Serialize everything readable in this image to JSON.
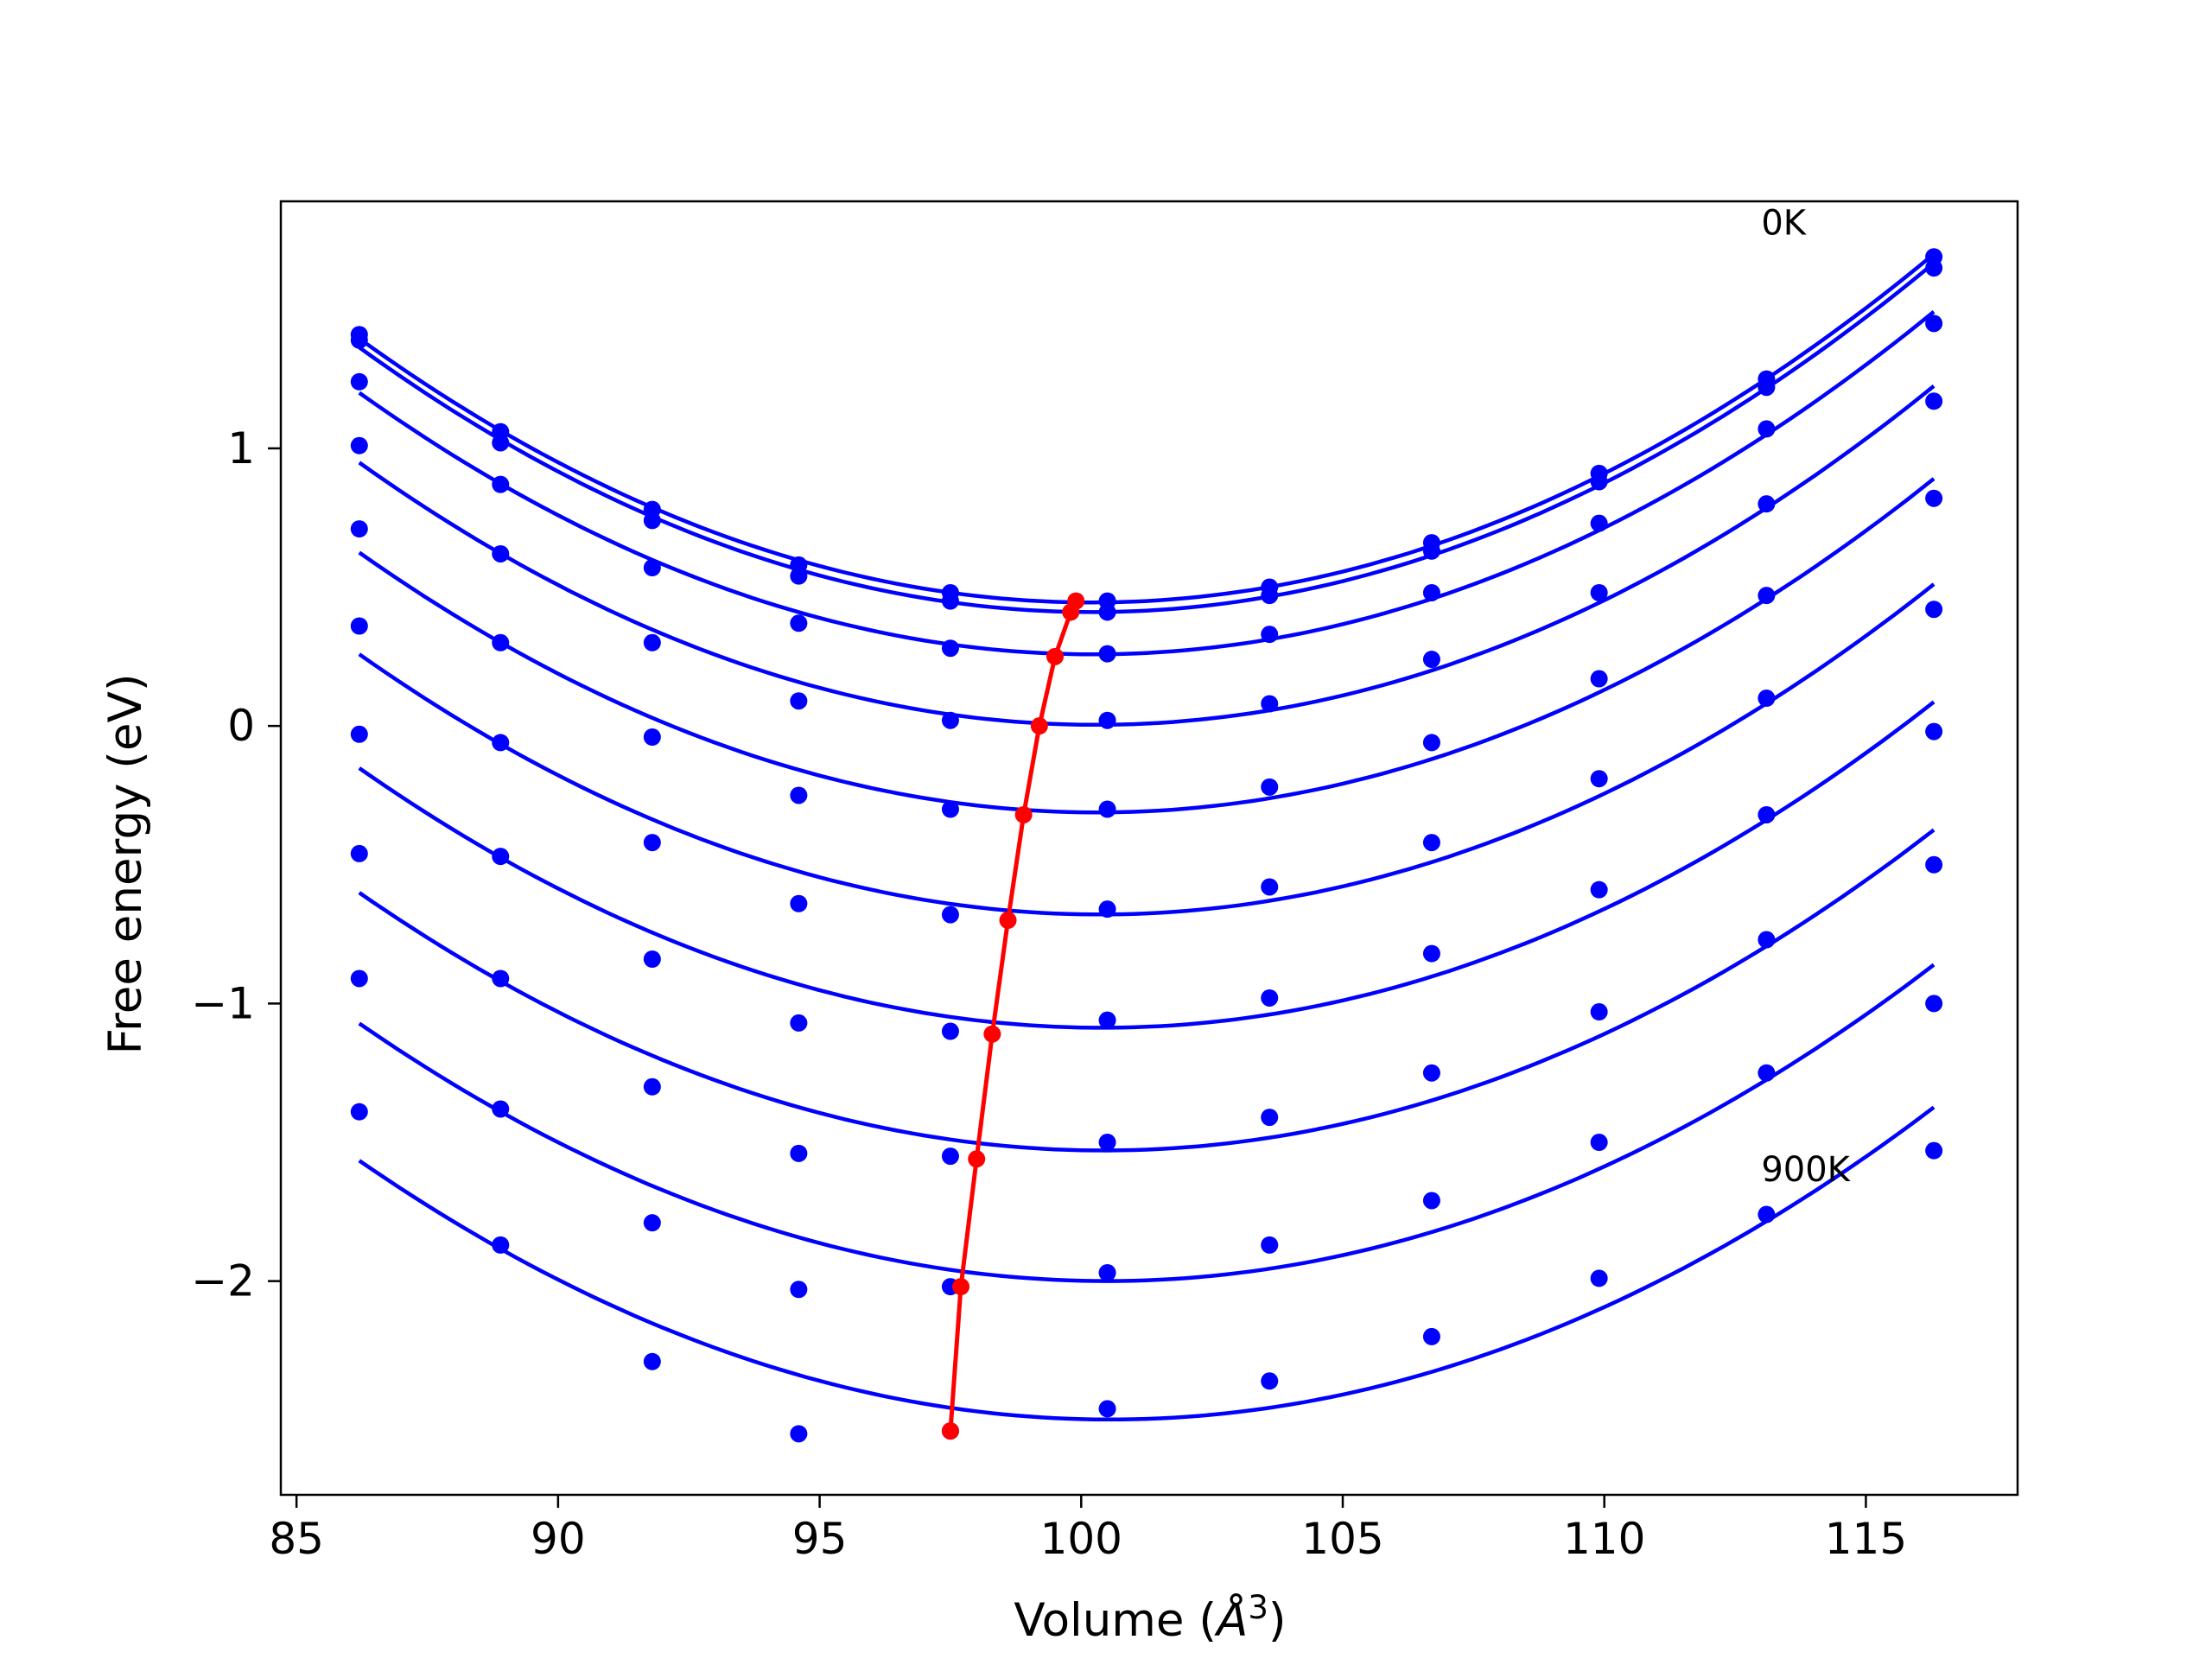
{
  "chart_data": {
    "type": "scatter",
    "title": "",
    "xlabel_main": "Volume (",
    "xlabel_unit": "Å",
    "xlabel_sup": "3",
    "xlabel_close": ")",
    "ylabel": "Free energy (eV)",
    "xlim": [
      84.7,
      117.9
    ],
    "ylim": [
      -2.77,
      1.89
    ],
    "xticks": [
      85,
      90,
      95,
      100,
      105,
      110,
      115
    ],
    "xtick_labels": [
      "85",
      "90",
      "95",
      "100",
      "105",
      "110",
      "115"
    ],
    "yticks": [
      -2,
      -1,
      0,
      1
    ],
    "ytick_labels": [
      "−2",
      "−1",
      "0",
      "1"
    ],
    "grid": false,
    "annotations": [
      {
        "text": "0K",
        "x": 113.0,
        "y": 1.77
      },
      {
        "text": "900K",
        "x": 113.0,
        "y": -1.64
      }
    ],
    "colors": {
      "series": "#0000ff",
      "minimum_curve": "#ff0000",
      "axes": "#000000",
      "background": "#ffffff"
    },
    "volumes": [
      86.2,
      88.9,
      91.8,
      94.6,
      97.5,
      100.5,
      103.6,
      106.7,
      109.9,
      113.1,
      116.3
    ],
    "series": [
      {
        "values": [
          1.41,
          1.06,
          0.78,
          0.58,
          0.48,
          0.45,
          0.5,
          0.66,
          0.91,
          1.25,
          1.69
        ]
      },
      {
        "values": [
          1.39,
          1.02,
          0.74,
          0.54,
          0.45,
          0.41,
          0.47,
          0.63,
          0.88,
          1.22,
          1.65
        ]
      },
      {
        "values": [
          1.24,
          0.87,
          0.57,
          0.37,
          0.28,
          0.26,
          0.33,
          0.48,
          0.73,
          1.07,
          1.45
        ]
      },
      {
        "values": [
          1.01,
          0.62,
          0.3,
          0.09,
          0.02,
          0.02,
          0.08,
          0.24,
          0.48,
          0.8,
          1.17
        ]
      },
      {
        "values": [
          0.71,
          0.3,
          -0.04,
          -0.25,
          -0.3,
          -0.3,
          -0.22,
          -0.06,
          0.17,
          0.47,
          0.82
        ]
      },
      {
        "values": [
          0.36,
          -0.06,
          -0.42,
          -0.64,
          -0.68,
          -0.66,
          -0.58,
          -0.42,
          -0.19,
          0.1,
          0.42
        ]
      },
      {
        "values": [
          -0.03,
          -0.47,
          -0.84,
          -1.07,
          -1.1,
          -1.06,
          -0.98,
          -0.82,
          -0.59,
          -0.32,
          -0.02
        ]
      },
      {
        "values": [
          -0.46,
          -0.91,
          -1.3,
          -1.54,
          -1.55,
          -1.5,
          -1.41,
          -1.25,
          -1.03,
          -0.77,
          -0.5
        ]
      },
      {
        "values": [
          -0.91,
          -1.38,
          -1.79,
          -2.03,
          -2.02,
          -1.97,
          -1.87,
          -1.71,
          -1.5,
          -1.25,
          -1.0
        ]
      },
      {
        "values": [
          -1.39,
          -1.87,
          -2.29,
          -2.55,
          -2.54,
          -2.46,
          -2.36,
          -2.2,
          -1.99,
          -1.76,
          -1.53
        ]
      }
    ],
    "minimum_curve": {
      "x": [
        99.9,
        99.8,
        99.5,
        99.2,
        98.9,
        98.6,
        98.3,
        98.0,
        97.7,
        97.5
      ],
      "y": [
        0.45,
        0.41,
        0.25,
        0.0,
        -0.32,
        -0.7,
        -1.11,
        -1.56,
        -2.02,
        -2.54
      ]
    }
  }
}
